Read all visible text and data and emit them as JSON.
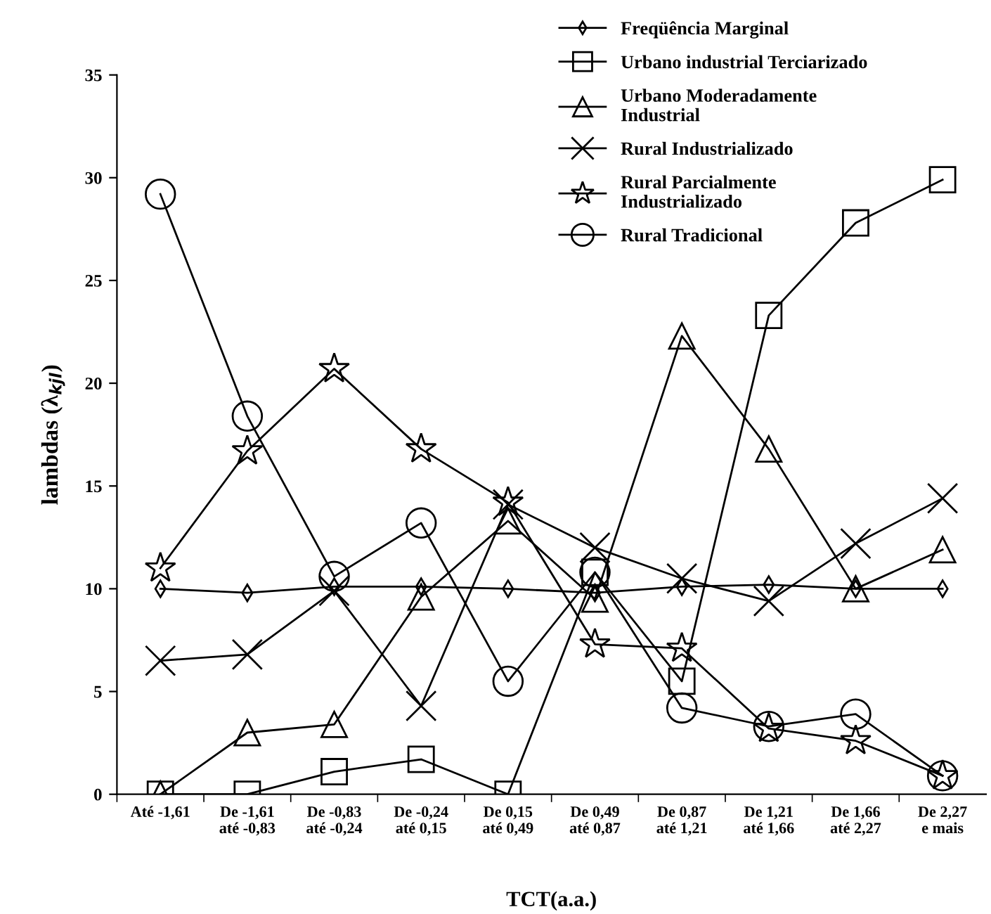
{
  "chart_data": {
    "type": "line",
    "xlabel": "TCT(a.a.)",
    "ylabel": "lambdas (λ$_{kjl}$)",
    "categories": [
      "Até -1,61",
      "De -1,61\naté -0,83",
      "De -0,83\naté -0,24",
      "De -0,24\naté 0,15",
      "De 0,15\naté 0,49",
      "De 0,49\naté 0,87",
      "De 0,87\naté 1,21",
      "De 1,21\naté 1,66",
      "De 1,66\naté 2,27",
      "De 2,27\ne mais"
    ],
    "ylim": [
      0,
      35
    ],
    "yticks": [
      0,
      5,
      10,
      15,
      20,
      25,
      30,
      35
    ],
    "grid": false,
    "legend": "top",
    "line_style": "solid",
    "series": [
      {
        "name": "Freqüência Marginal",
        "color": "#000000",
        "marker": "diamond",
        "values": [
          10,
          9.8,
          10.1,
          10.1,
          10,
          9.8,
          10.1,
          10.2,
          10,
          10
        ]
      },
      {
        "name": "Urbano industrial Terciarizado",
        "color": "#000000",
        "marker": "square",
        "values": [
          0,
          0,
          1.1,
          1.7,
          0,
          10.8,
          5.5,
          23.3,
          27.8,
          29.9
        ]
      },
      {
        "name": "Urbano Moderadamente\nIndustrial",
        "color": "#000000",
        "marker": "triangle",
        "values": [
          0,
          3,
          3.4,
          9.6,
          13.3,
          9.5,
          22.3,
          16.8,
          10,
          11.9
        ]
      },
      {
        "name": "Rural Industrializado",
        "color": "#000000",
        "marker": "cross",
        "values": [
          6.5,
          6.8,
          9.9,
          4.3,
          14.1,
          12,
          10.5,
          9.4,
          12.2,
          14.4
        ]
      },
      {
        "name": "Rural Parcialmente\nIndustrializado",
        "color": "#000000",
        "marker": "star",
        "values": [
          11,
          16.7,
          20.7,
          16.8,
          14.2,
          7.3,
          7.1,
          3.2,
          2.6,
          0.9
        ]
      },
      {
        "name": "Rural Tradicional",
        "color": "#000000",
        "marker": "circle",
        "values": [
          29.2,
          18.4,
          10.6,
          13.2,
          5.5,
          10.8,
          4.2,
          3.3,
          3.9,
          0.9
        ]
      }
    ]
  }
}
